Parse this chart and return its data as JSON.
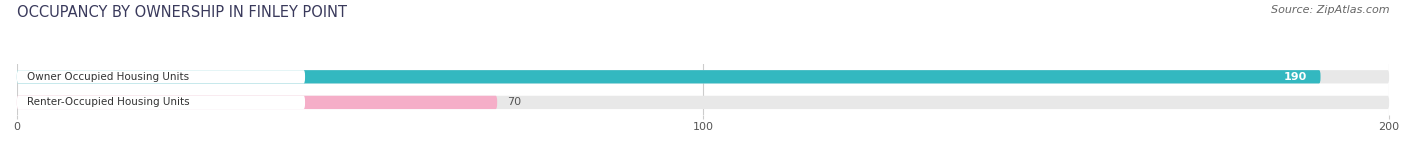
{
  "title": "OCCUPANCY BY OWNERSHIP IN FINLEY POINT",
  "source": "Source: ZipAtlas.com",
  "bars": [
    {
      "label": "Owner Occupied Housing Units",
      "value": 190,
      "color": "#33b8c0",
      "value_color": "white",
      "value_inside": true
    },
    {
      "label": "Renter-Occupied Housing Units",
      "value": 70,
      "color": "#f5aec8",
      "value_color": "#555555",
      "value_inside": false
    }
  ],
  "xlim": [
    0,
    200
  ],
  "xticks": [
    0,
    100,
    200
  ],
  "bar_height": 0.52,
  "background_color": "#ffffff",
  "bar_background_color": "#e8e8e8",
  "label_bg_color": "#ffffff",
  "title_fontsize": 10.5,
  "source_fontsize": 8,
  "label_fontsize": 7.5,
  "value_fontsize": 8,
  "title_color": "#3a3a5c",
  "source_color": "#666666"
}
